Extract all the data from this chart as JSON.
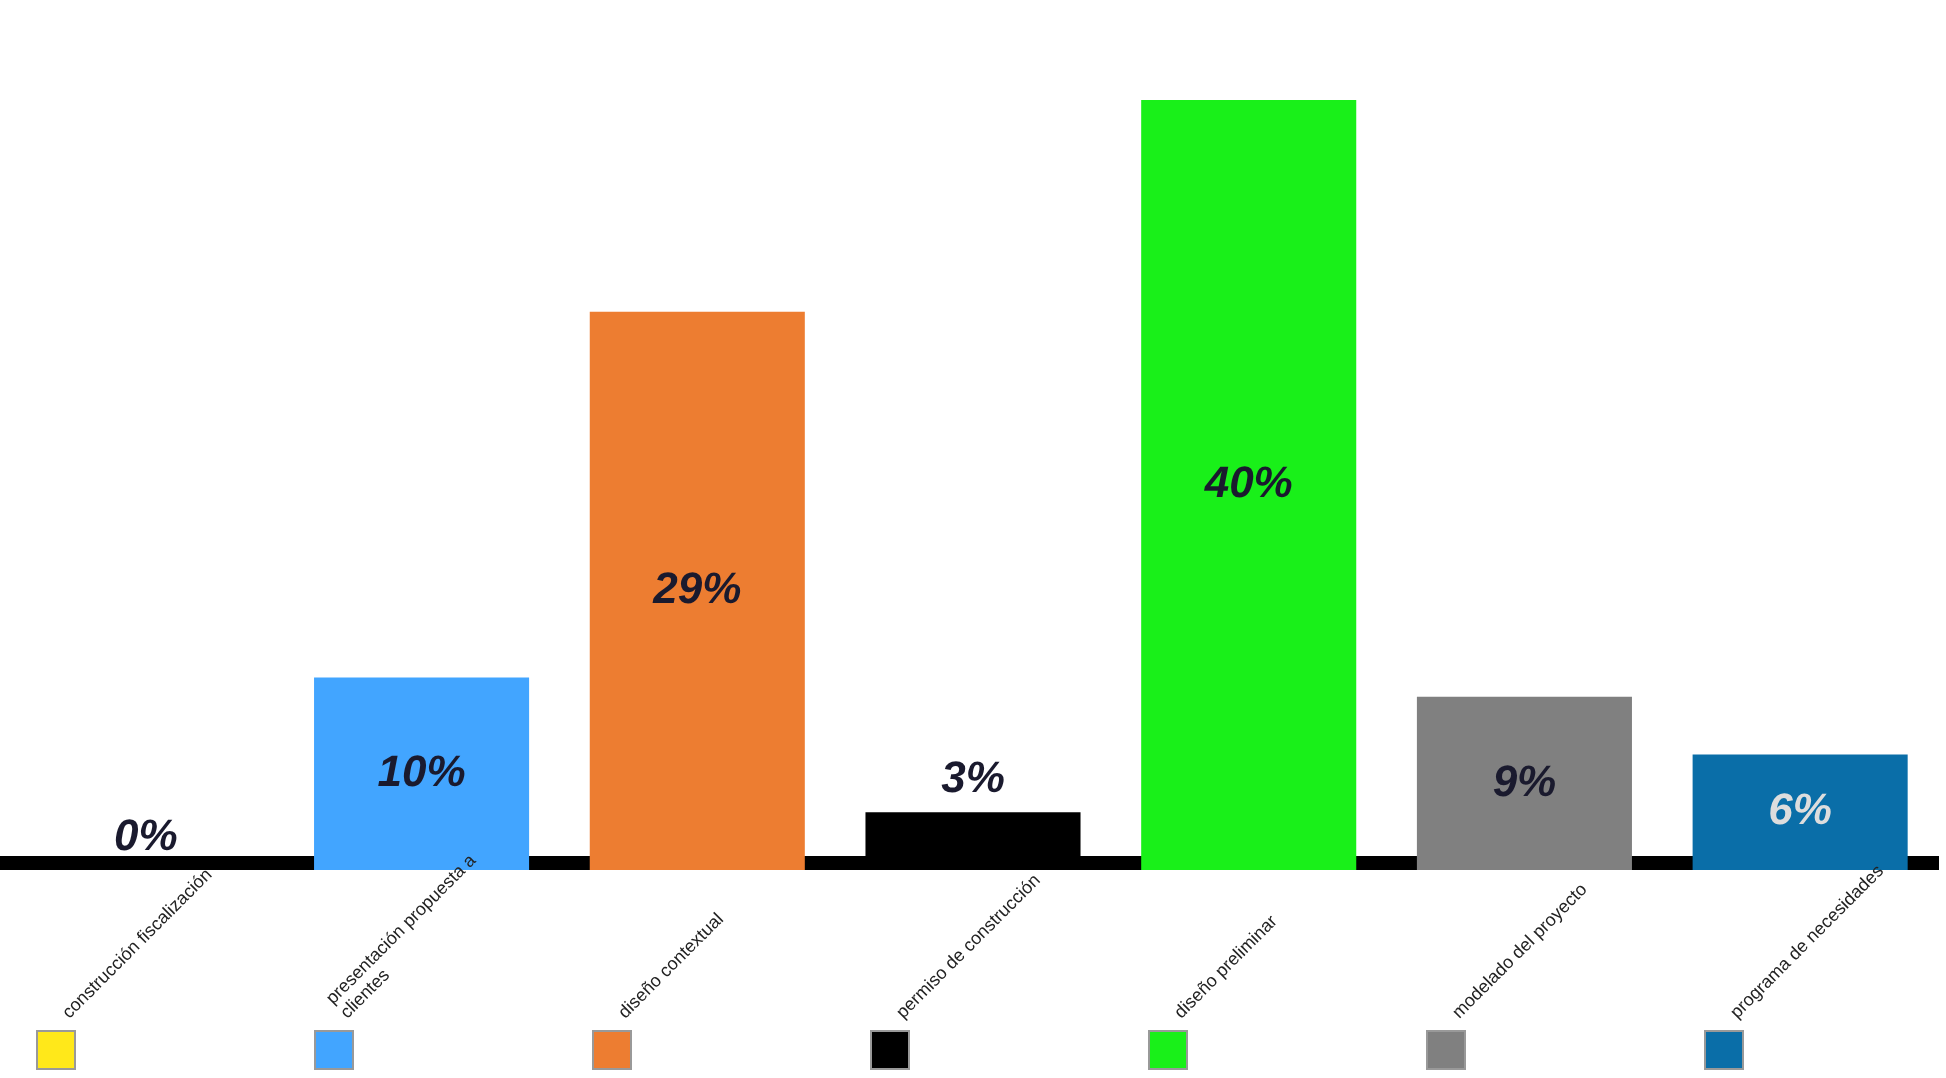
{
  "chart_data": {
    "type": "bar",
    "categories": [
      "construcción fiscalización",
      "presentación propuesta a clientes",
      "diseño contextual",
      "permiso de construcción",
      "diseño preliminar",
      "modelado del proyecto",
      "programa de necesidades"
    ],
    "values": [
      0,
      10,
      29,
      3,
      40,
      9,
      6
    ],
    "value_labels": [
      "0%",
      "10%",
      "29%",
      "3%",
      "40%",
      "9%",
      "6%"
    ],
    "colors": [
      "#ffe81a",
      "#42a5ff",
      "#ed7d31",
      "#000000",
      "#19f019",
      "#808080",
      "#0a6ea8"
    ]
  }
}
